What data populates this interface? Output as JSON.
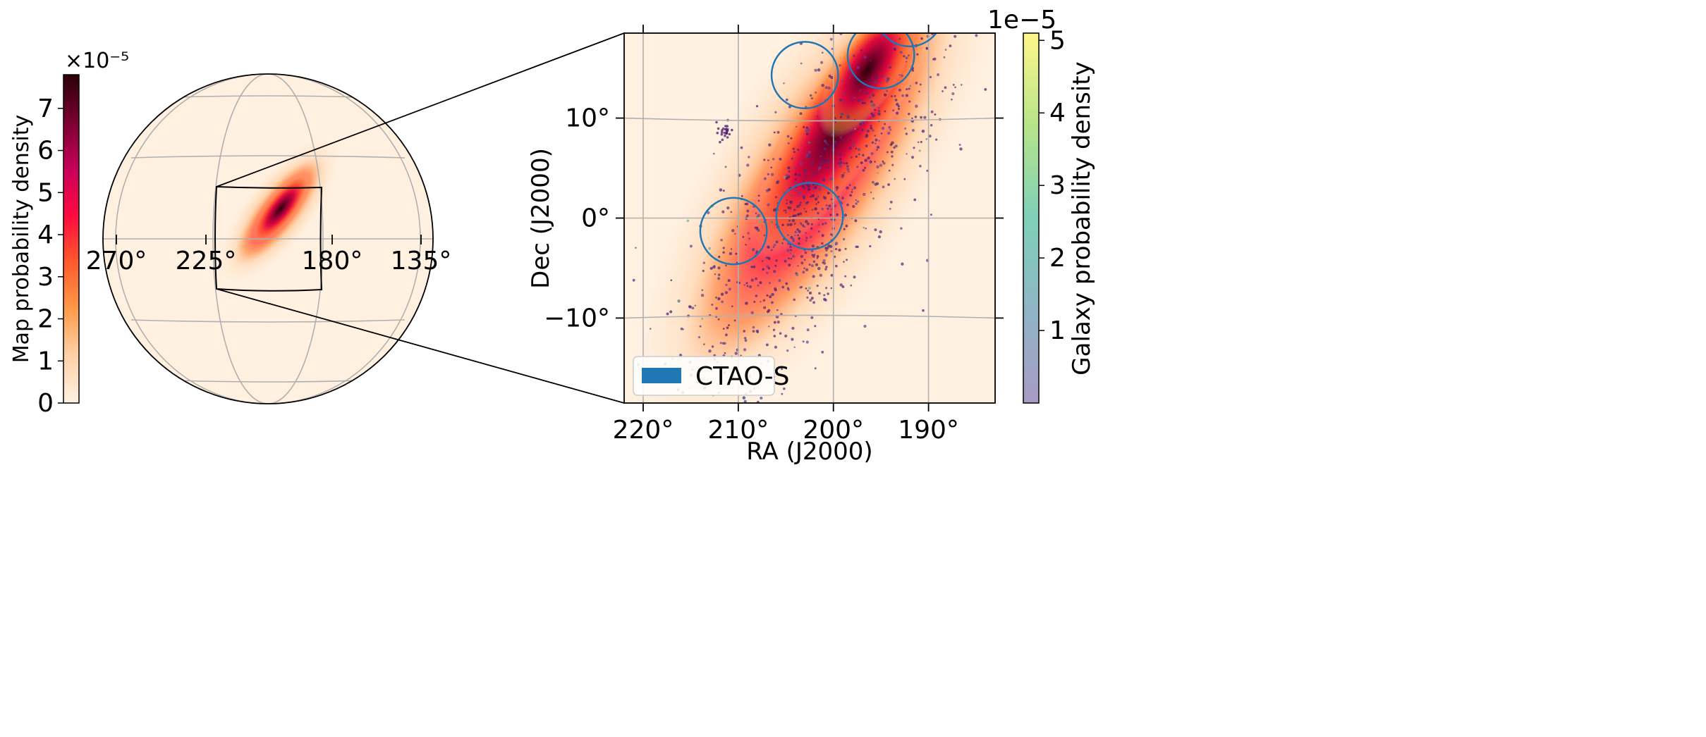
{
  "chart_data": [
    {
      "type": "heatmap",
      "panel": "sky-overview",
      "colorbar": {
        "label": "Map probability density",
        "multiplier": "×10⁻⁵",
        "ticks": [
          "0",
          "1",
          "2",
          "3",
          "4",
          "5",
          "6",
          "7"
        ],
        "range": [
          0,
          7.8
        ],
        "colormap": [
          "#fff0e0",
          "#ffd2a8",
          "#ff9a4a",
          "#ff5a2a",
          "#ff0a40",
          "#c8005a",
          "#7a0030",
          "#2a0008"
        ]
      },
      "ra_ticks": [
        "270°",
        "225°",
        "180°",
        "135°"
      ],
      "hotspot": {
        "ra": 200,
        "dec": 5
      }
    },
    {
      "type": "scatter",
      "panel": "zoom",
      "xlabel": "RA (J2000)",
      "ylabel": "Dec (J2000)",
      "xlim": [
        222,
        183
      ],
      "ylim": [
        -18.5,
        18.5
      ],
      "x_ticks": [
        {
          "value": 220,
          "label": "220°"
        },
        {
          "value": 210,
          "label": "210°"
        },
        {
          "value": 200,
          "label": "200°"
        },
        {
          "value": 190,
          "label": "190°"
        }
      ],
      "y_ticks": [
        {
          "value": 10,
          "label": "10°"
        },
        {
          "value": 0,
          "label": "0°"
        },
        {
          "value": -10,
          "label": "−10°"
        }
      ],
      "grid": true,
      "colorbar": {
        "label": "Galaxy probability density",
        "multiplier": "1e−5",
        "ticks": [
          "1",
          "2",
          "3",
          "4",
          "5"
        ],
        "range": [
          0,
          5.1
        ],
        "colormap": [
          "#a89ac4",
          "#8fb5c6",
          "#7fd0b8",
          "#b6e48a",
          "#fff68a"
        ]
      },
      "tiles": [
        {
          "ra": 210.5,
          "dec": -1.3,
          "radius": 3.5
        },
        {
          "ra": 202.5,
          "dec": 0.2,
          "radius": 3.5
        },
        {
          "ra": 203.0,
          "dec": 14.3,
          "radius": 3.5
        },
        {
          "ra": 195.0,
          "dec": 16.3,
          "radius": 3.5
        },
        {
          "ra": 192.0,
          "dec": 20.5,
          "radius": 3.5
        }
      ],
      "legend": {
        "label": "CTAO-S",
        "color": "#1f77b4",
        "placement": "lower-left"
      }
    }
  ]
}
